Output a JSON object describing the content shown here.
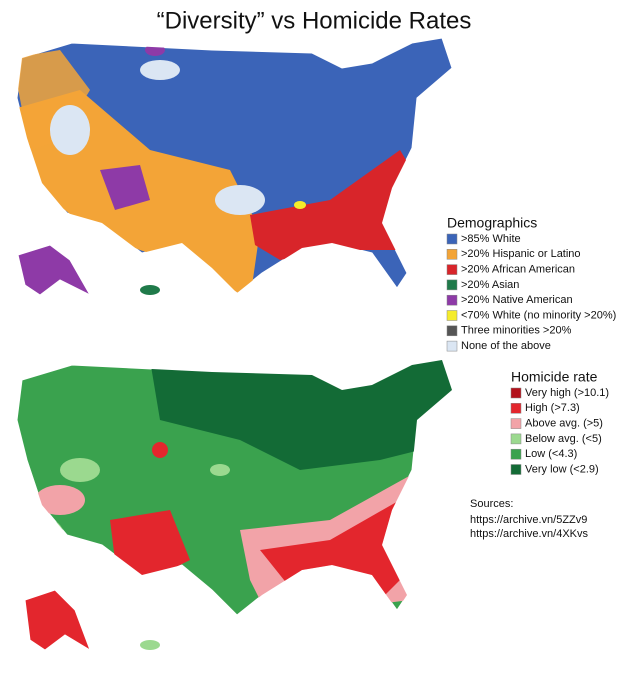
{
  "title": "“Diversity” vs Homicide Rates",
  "demographics": {
    "title": "Demographics",
    "items": [
      {
        "label": ">85% White",
        "color": "#3b64b8"
      },
      {
        "label": ">20% Hispanic or Latino",
        "color": "#f3a437"
      },
      {
        "label": ">20% African American",
        "color": "#d8252a"
      },
      {
        "label": ">20% Asian",
        "color": "#1f7a4a"
      },
      {
        "label": ">20% Native American",
        "color": "#8e3aa7"
      },
      {
        "label": "<70% White (no minority >20%)",
        "color": "#f5ec2b"
      },
      {
        "label": "Three minorities >20%",
        "color": "#555555"
      },
      {
        "label": "None of the above",
        "color": "#dbe6f3"
      }
    ]
  },
  "homicide": {
    "title": "Homicide rate",
    "items": [
      {
        "label": "Very high (>10.1)",
        "color": "#b3121c"
      },
      {
        "label": "High (>7.3)",
        "color": "#e3262d"
      },
      {
        "label": "Above avg. (>5)",
        "color": "#f2a3a8"
      },
      {
        "label": "Below avg. (<5)",
        "color": "#9bd98f"
      },
      {
        "label": "Low (<4.3)",
        "color": "#3aa24e"
      },
      {
        "label": "Very low (<2.9)",
        "color": "#136b36"
      }
    ]
  },
  "sources": {
    "label": "Sources:",
    "links": [
      "https://archive.vn/5ZZv9",
      "https://archive.vn/4XKvs"
    ]
  }
}
